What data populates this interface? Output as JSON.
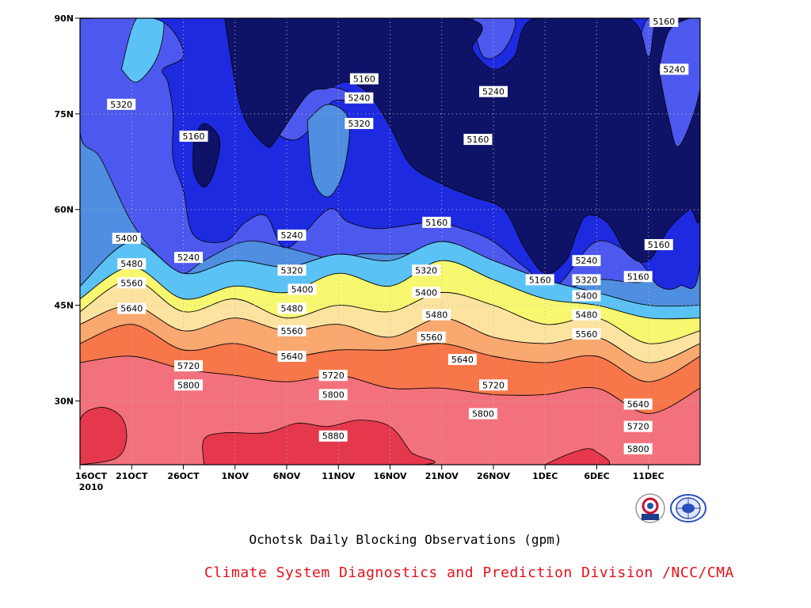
{
  "chart_data": {
    "type": "contour",
    "subtitle": "Ochotsk Daily Blocking Observations (gpm)",
    "footer": "Climate System Diagnostics and Prediction Division /NCC/CMA",
    "x_ticks": [
      "16OCT",
      "21OCT",
      "26OCT",
      "1NOV",
      "6NOV",
      "11NOV",
      "16NOV",
      "21NOV",
      "26NOV",
      "1DEC",
      "6DEC",
      "11DEC"
    ],
    "x_year_label": "2010",
    "y_ticks": [
      "30N",
      "45N",
      "60N",
      "75N",
      "90N"
    ],
    "y_tick_values": [
      30,
      45,
      60,
      75,
      90
    ],
    "ylim": [
      20,
      90
    ],
    "xlim": [
      0,
      60
    ],
    "contour_levels": [
      5160,
      5240,
      5320,
      5400,
      5480,
      5560,
      5640,
      5720,
      5800,
      5880
    ],
    "level_colors": {
      "below_5160": "#0f1368",
      "5160_5240": "#1e2ae0",
      "5240_5320": "#4d58ee",
      "5320_5400": "#4f8ee0",
      "5400_5480": "#5bc2f6",
      "5480_5560": "#f8f870",
      "5560_5640": "#fde3a0",
      "5640_5720": "#f9a870",
      "5720_5800": "#f7764a",
      "5800_5880": "#f3717d",
      "above_5880": "#e5384c"
    },
    "contour_latitudes_by_day": {
      "days": [
        0,
        5,
        10,
        15,
        20,
        25,
        30,
        35,
        40,
        45,
        50,
        55,
        60
      ],
      "5400": [
        48,
        55,
        50,
        52,
        51,
        53,
        52,
        55,
        52,
        49,
        47,
        45,
        45
      ],
      "5480": [
        46,
        51,
        46,
        48,
        47,
        50,
        48,
        52,
        49,
        46,
        45,
        43,
        43
      ],
      "5560": [
        44,
        49,
        44,
        46,
        43,
        45,
        44,
        47,
        45,
        42,
        43,
        39,
        41
      ],
      "5640": [
        42,
        45,
        41,
        43,
        41,
        42,
        40,
        43,
        40,
        39,
        40,
        36,
        39
      ],
      "5720": [
        39,
        42,
        38,
        39,
        37,
        38,
        38,
        39,
        37,
        36,
        37,
        33,
        37
      ],
      "5800": [
        36,
        37,
        35,
        34,
        33,
        34,
        32,
        32,
        31,
        31,
        32,
        28,
        32
      ],
      "5880": [
        29,
        27,
        20,
        25,
        26,
        26,
        22,
        20,
        20,
        22,
        20,
        20,
        20
      ]
    },
    "contour_labels": [
      {
        "day": 4,
        "lat": 76.5,
        "text": "5320"
      },
      {
        "day": 11,
        "lat": 71.5,
        "text": "5160"
      },
      {
        "day": 10.5,
        "lat": 52.5,
        "text": "5240"
      },
      {
        "day": 4.5,
        "lat": 55.5,
        "text": "5400"
      },
      {
        "day": 5,
        "lat": 51.5,
        "text": "5480"
      },
      {
        "day": 5,
        "lat": 48.5,
        "text": "5560"
      },
      {
        "day": 5,
        "lat": 44.5,
        "text": "5640"
      },
      {
        "day": 10.5,
        "lat": 35.5,
        "text": "5720"
      },
      {
        "day": 10.5,
        "lat": 32.5,
        "text": "5800"
      },
      {
        "day": 20.5,
        "lat": 56,
        "text": "5240"
      },
      {
        "day": 20.5,
        "lat": 50.5,
        "text": "5320"
      },
      {
        "day": 21.5,
        "lat": 47.5,
        "text": "5400"
      },
      {
        "day": 20.5,
        "lat": 44.5,
        "text": "5480"
      },
      {
        "day": 20.5,
        "lat": 41,
        "text": "5560"
      },
      {
        "day": 20.5,
        "lat": 37,
        "text": "5640"
      },
      {
        "day": 24.5,
        "lat": 34,
        "text": "5720"
      },
      {
        "day": 24.5,
        "lat": 31,
        "text": "5800"
      },
      {
        "day": 24.5,
        "lat": 24.5,
        "text": "5880"
      },
      {
        "day": 27.5,
        "lat": 80.5,
        "text": "5160"
      },
      {
        "day": 27,
        "lat": 77.5,
        "text": "5240"
      },
      {
        "day": 27,
        "lat": 73.5,
        "text": "5320"
      },
      {
        "day": 33.5,
        "lat": 50.5,
        "text": "5320"
      },
      {
        "day": 33.5,
        "lat": 47,
        "text": "5400"
      },
      {
        "day": 34.5,
        "lat": 43.5,
        "text": "5480"
      },
      {
        "day": 34,
        "lat": 40,
        "text": "5560"
      },
      {
        "day": 37,
        "lat": 36.5,
        "text": "5640"
      },
      {
        "day": 40,
        "lat": 32.5,
        "text": "5720"
      },
      {
        "day": 39,
        "lat": 28,
        "text": "5800"
      },
      {
        "day": 34.5,
        "lat": 58,
        "text": "5160"
      },
      {
        "day": 38.5,
        "lat": 71,
        "text": "5160"
      },
      {
        "day": 40,
        "lat": 78.5,
        "text": "5240"
      },
      {
        "day": 44.5,
        "lat": 49,
        "text": "5160"
      },
      {
        "day": 49,
        "lat": 52,
        "text": "5240"
      },
      {
        "day": 49,
        "lat": 49,
        "text": "5320"
      },
      {
        "day": 49,
        "lat": 46.5,
        "text": "5400"
      },
      {
        "day": 49,
        "lat": 43.5,
        "text": "5480"
      },
      {
        "day": 49,
        "lat": 40.5,
        "text": "5560"
      },
      {
        "day": 54,
        "lat": 49.5,
        "text": "5160"
      },
      {
        "day": 54,
        "lat": 29.5,
        "text": "5640"
      },
      {
        "day": 54,
        "lat": 26,
        "text": "5720"
      },
      {
        "day": 54,
        "lat": 22.5,
        "text": "5800"
      },
      {
        "day": 56,
        "lat": 54.5,
        "text": "5160"
      },
      {
        "day": 57.5,
        "lat": 82,
        "text": "5240"
      },
      {
        "day": 56.5,
        "lat": 89.5,
        "text": "5160"
      }
    ],
    "grid": true,
    "logos": [
      "BCC",
      "NCC"
    ]
  }
}
